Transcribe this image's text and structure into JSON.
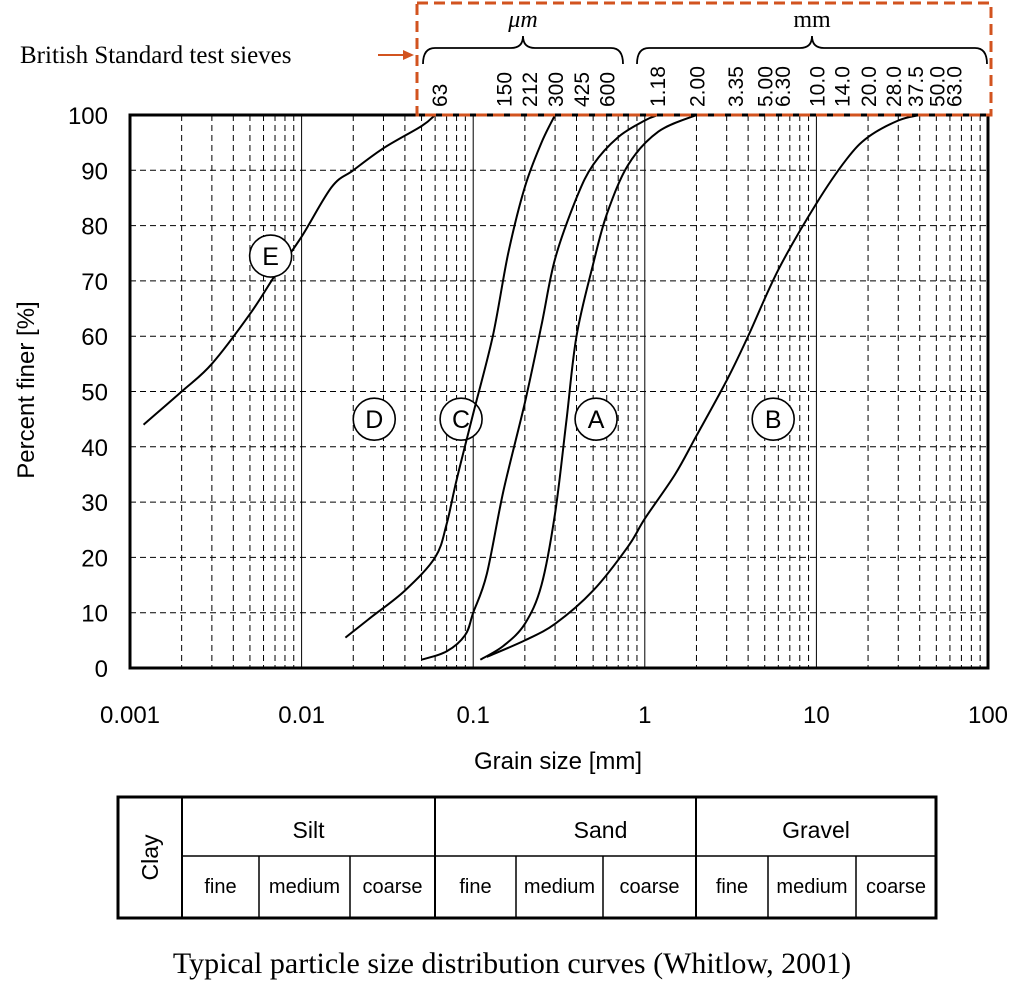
{
  "chart_data": {
    "type": "line",
    "title": "",
    "xlabel": "Grain size [mm]",
    "ylabel": "Percent finer [%]",
    "x_scale": "log",
    "xlim": [
      0.001,
      100
    ],
    "ylim": [
      0,
      100
    ],
    "x_ticks": [
      0.001,
      0.01,
      0.1,
      1,
      10,
      100
    ],
    "x_tick_labels": [
      "0.001",
      "0.01",
      "0.1",
      "1",
      "10",
      "100"
    ],
    "y_ticks": [
      0,
      10,
      20,
      30,
      40,
      50,
      60,
      70,
      80,
      90,
      100
    ],
    "y_tick_labels": [
      "0",
      "10",
      "20",
      "30",
      "40",
      "50",
      "60",
      "70",
      "80",
      "90",
      "100"
    ],
    "grid": true,
    "series": [
      {
        "name": "A",
        "label_at": [
          0.52,
          45
        ],
        "points": [
          [
            0.11,
            1.5
          ],
          [
            0.15,
            4
          ],
          [
            0.2,
            8
          ],
          [
            0.25,
            15
          ],
          [
            0.3,
            28
          ],
          [
            0.35,
            45
          ],
          [
            0.4,
            60
          ],
          [
            0.5,
            73
          ],
          [
            0.6,
            82
          ],
          [
            0.8,
            91
          ],
          [
            1.2,
            97
          ],
          [
            2.0,
            100
          ]
        ]
      },
      {
        "name": "B",
        "label_at": [
          5.6,
          45
        ],
        "points": [
          [
            0.12,
            2
          ],
          [
            0.2,
            5
          ],
          [
            0.3,
            8
          ],
          [
            0.5,
            14
          ],
          [
            0.8,
            22
          ],
          [
            1.0,
            27
          ],
          [
            1.5,
            35
          ],
          [
            2.0,
            42
          ],
          [
            3.0,
            52
          ],
          [
            4.0,
            60
          ],
          [
            6.0,
            72
          ],
          [
            10.0,
            84
          ],
          [
            15.0,
            92
          ],
          [
            20.0,
            96
          ],
          [
            30.0,
            99
          ],
          [
            40.0,
            100
          ]
        ]
      },
      {
        "name": "C",
        "label_at": [
          0.085,
          45
        ],
        "points": [
          [
            0.05,
            1.5
          ],
          [
            0.07,
            3
          ],
          [
            0.09,
            6
          ],
          [
            0.1,
            10
          ],
          [
            0.12,
            17
          ],
          [
            0.15,
            32
          ],
          [
            0.2,
            48
          ],
          [
            0.25,
            62
          ],
          [
            0.3,
            74
          ],
          [
            0.4,
            85
          ],
          [
            0.5,
            91
          ],
          [
            0.7,
            96
          ],
          [
            1.0,
            99
          ],
          [
            1.2,
            100
          ]
        ]
      },
      {
        "name": "D",
        "label_at": [
          0.0265,
          45
        ],
        "points": [
          [
            0.018,
            5.5
          ],
          [
            0.025,
            9
          ],
          [
            0.04,
            14
          ],
          [
            0.06,
            20
          ],
          [
            0.07,
            26
          ],
          [
            0.08,
            34
          ],
          [
            0.1,
            46
          ],
          [
            0.13,
            60
          ],
          [
            0.16,
            75
          ],
          [
            0.2,
            87
          ],
          [
            0.25,
            95
          ],
          [
            0.3,
            100
          ]
        ]
      },
      {
        "name": "E",
        "label_at": [
          0.0066,
          74.5
        ],
        "points": [
          [
            0.0012,
            44
          ],
          [
            0.002,
            50
          ],
          [
            0.003,
            55
          ],
          [
            0.005,
            64
          ],
          [
            0.007,
            71
          ],
          [
            0.01,
            78
          ],
          [
            0.015,
            87
          ],
          [
            0.02,
            90
          ],
          [
            0.03,
            94
          ],
          [
            0.05,
            98
          ],
          [
            0.06,
            100
          ]
        ]
      }
    ],
    "sieves": {
      "label": "British Standard test sieves",
      "micron_unit": "μm",
      "mm_unit": "mm",
      "micron": [
        {
          "label": "63",
          "value": 0.063
        },
        {
          "label": "150",
          "value": 0.15
        },
        {
          "label": "212",
          "value": 0.212
        },
        {
          "label": "300",
          "value": 0.3
        },
        {
          "label": "425",
          "value": 0.425
        },
        {
          "label": "600",
          "value": 0.6
        }
      ],
      "mm": [
        {
          "label": "1.18",
          "value": 1.18
        },
        {
          "label": "2.00",
          "value": 2.0
        },
        {
          "label": "3.35",
          "value": 3.35
        },
        {
          "label": "5.00",
          "value": 5.0
        },
        {
          "label": "6.30",
          "value": 6.3
        },
        {
          "label": "10.0",
          "value": 10.0
        },
        {
          "label": "14.0",
          "value": 14.0
        },
        {
          "label": "20.0",
          "value": 20.0
        },
        {
          "label": "28.0",
          "value": 28.0
        },
        {
          "label": "37.5",
          "value": 37.5
        },
        {
          "label": "50.0",
          "value": 50.0
        },
        {
          "label": "63.0",
          "value": 63.0
        }
      ]
    },
    "classification": {
      "clay": "Clay",
      "groups": [
        {
          "name": "Silt",
          "from": 0.002,
          "to": 0.063,
          "subs": [
            {
              "name": "fine",
              "from": 0.002,
              "to": 0.0063
            },
            {
              "name": "medium",
              "from": 0.0063,
              "to": 0.02
            },
            {
              "name": "coarse",
              "from": 0.02,
              "to": 0.063
            }
          ]
        },
        {
          "name": "Sand",
          "from": 0.063,
          "to": 2.0,
          "subs": [
            {
              "name": "fine",
              "from": 0.063,
              "to": 0.2
            },
            {
              "name": "medium",
              "from": 0.2,
              "to": 0.63
            },
            {
              "name": "coarse",
              "from": 0.63,
              "to": 2.0
            }
          ]
        },
        {
          "name": "Gravel",
          "from": 2.0,
          "to": 63.0,
          "subs": [
            {
              "name": "fine",
              "from": 2.0,
              "to": 6.3
            },
            {
              "name": "medium",
              "from": 6.3,
              "to": 20.0
            },
            {
              "name": "coarse",
              "from": 20.0,
              "to": 63.0
            }
          ]
        }
      ]
    },
    "highlight_color": "#d2531f",
    "caption": "Typical particle size distribution curves (Whitlow, 2001)"
  }
}
